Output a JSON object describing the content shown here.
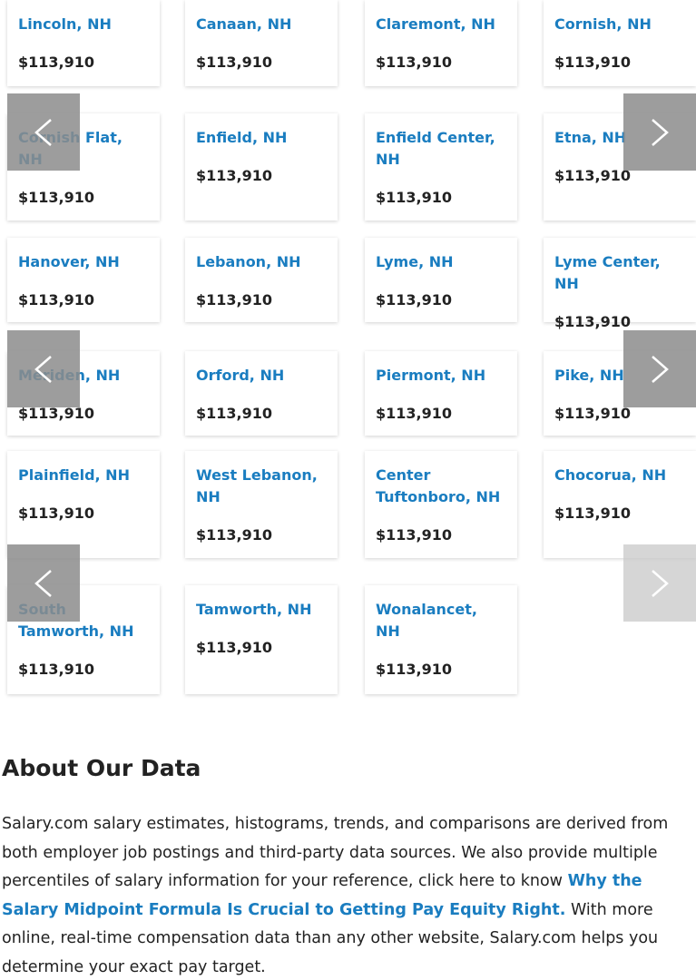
{
  "cards": [
    {
      "city": "Lincoln, NH",
      "salary": "$113,910"
    },
    {
      "city": "Canaan, NH",
      "salary": "$113,910"
    },
    {
      "city": "Claremont, NH",
      "salary": "$113,910"
    },
    {
      "city": "Cornish, NH",
      "salary": "$113,910"
    },
    {
      "city": "Cornish Flat, NH",
      "salary": "$113,910"
    },
    {
      "city": "Enfield, NH",
      "salary": "$113,910"
    },
    {
      "city": "Enfield Center, NH",
      "salary": "$113,910"
    },
    {
      "city": "Etna, NH",
      "salary": "$113,910"
    },
    {
      "city": "Hanover, NH",
      "salary": "$113,910"
    },
    {
      "city": "Lebanon, NH",
      "salary": "$113,910"
    },
    {
      "city": "Lyme, NH",
      "salary": "$113,910"
    },
    {
      "city": "Lyme Center, NH",
      "salary": "$113,910"
    },
    {
      "city": "Meriden, NH",
      "salary": "$113,910"
    },
    {
      "city": "Orford, NH",
      "salary": "$113,910"
    },
    {
      "city": "Piermont, NH",
      "salary": "$113,910"
    },
    {
      "city": "Pike, NH",
      "salary": "$113,910"
    },
    {
      "city": "Plainfield, NH",
      "salary": "$113,910"
    },
    {
      "city": "West Lebanon, NH",
      "salary": "$113,910"
    },
    {
      "city": "Center Tuftonboro, NH",
      "salary": "$113,910"
    },
    {
      "city": "Chocorua, NH",
      "salary": "$113,910"
    },
    {
      "city": "South Tamworth, NH",
      "salary": "$113,910"
    },
    {
      "city": "Tamworth, NH",
      "salary": "$113,910"
    },
    {
      "city": "Wonalancet, NH",
      "salary": "$113,910"
    }
  ],
  "about": {
    "title": "About Our Data",
    "text_before": "Salary.com salary estimates, histograms, trends, and comparisons are derived from both employer job postings and third-party data sources. We also provide multiple percentiles of salary information for your reference, click here to know",
    "link": "Why the Salary Midpoint Formula Is Crucial to Getting Pay Equity Right.",
    "text_after": "With more online, real-time compensation data than any other website, Salary.com helps you determine your exact pay target."
  }
}
